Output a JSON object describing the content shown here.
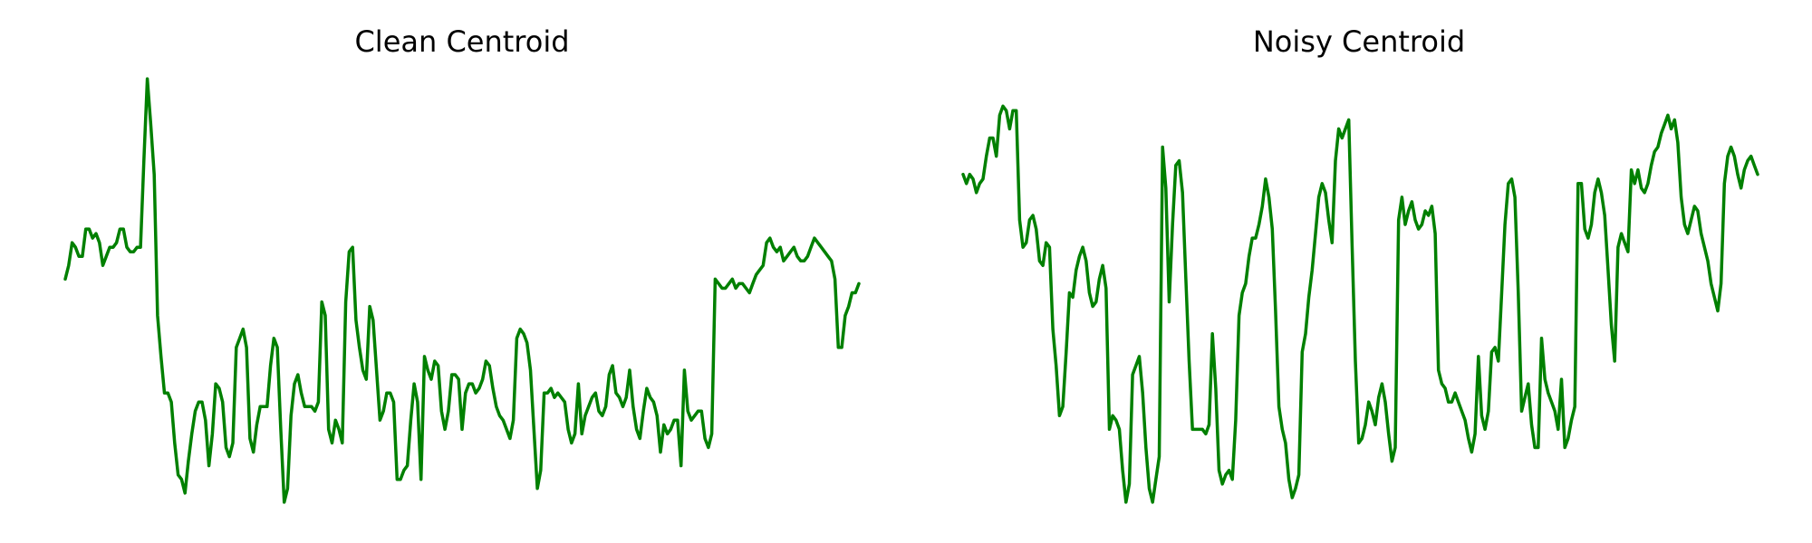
{
  "colors": {
    "line": "#008000",
    "background": "#ffffff"
  },
  "chart_data": [
    {
      "type": "line",
      "title": "Clean Centroid",
      "axes_visible": false,
      "ylim": [
        0,
        1
      ],
      "series": [
        {
          "color": "#008000",
          "values": [
            0.53,
            0.56,
            0.61,
            0.6,
            0.58,
            0.58,
            0.64,
            0.64,
            0.62,
            0.63,
            0.61,
            0.56,
            0.58,
            0.6,
            0.6,
            0.61,
            0.64,
            0.64,
            0.6,
            0.59,
            0.59,
            0.6,
            0.6,
            0.79,
            0.97,
            0.87,
            0.76,
            0.45,
            0.36,
            0.28,
            0.28,
            0.26,
            0.17,
            0.1,
            0.09,
            0.06,
            0.13,
            0.19,
            0.24,
            0.26,
            0.26,
            0.22,
            0.12,
            0.19,
            0.3,
            0.29,
            0.26,
            0.16,
            0.14,
            0.17,
            0.38,
            0.4,
            0.42,
            0.38,
            0.18,
            0.15,
            0.21,
            0.25,
            0.25,
            0.25,
            0.34,
            0.4,
            0.38,
            0.2,
            0.04,
            0.07,
            0.23,
            0.3,
            0.32,
            0.28,
            0.25,
            0.25,
            0.25,
            0.24,
            0.26,
            0.48,
            0.45,
            0.2,
            0.17,
            0.22,
            0.2,
            0.17,
            0.48,
            0.59,
            0.6,
            0.44,
            0.38,
            0.33,
            0.31,
            0.47,
            0.44,
            0.33,
            0.22,
            0.24,
            0.28,
            0.28,
            0.26,
            0.09,
            0.09,
            0.11,
            0.12,
            0.22,
            0.3,
            0.26,
            0.09,
            0.36,
            0.33,
            0.31,
            0.35,
            0.34,
            0.24,
            0.2,
            0.24,
            0.32,
            0.32,
            0.31,
            0.2,
            0.28,
            0.3,
            0.3,
            0.28,
            0.29,
            0.31,
            0.35,
            0.34,
            0.29,
            0.25,
            0.23,
            0.22,
            0.2,
            0.18,
            0.22,
            0.4,
            0.42,
            0.41,
            0.39,
            0.33,
            0.2,
            0.07,
            0.11,
            0.28,
            0.28,
            0.29,
            0.27,
            0.28,
            0.27,
            0.26,
            0.2,
            0.17,
            0.19,
            0.3,
            0.19,
            0.23,
            0.25,
            0.27,
            0.28,
            0.24,
            0.23,
            0.25,
            0.32,
            0.34,
            0.28,
            0.27,
            0.25,
            0.27,
            0.33,
            0.25,
            0.2,
            0.18,
            0.24,
            0.29,
            0.27,
            0.26,
            0.23,
            0.15,
            0.21,
            0.19,
            0.2,
            0.22,
            0.22,
            0.12,
            0.33,
            0.24,
            0.22,
            0.23,
            0.24,
            0.24,
            0.18,
            0.16,
            0.19,
            0.53,
            0.52,
            0.51,
            0.51,
            0.52,
            0.53,
            0.51,
            0.52,
            0.52,
            0.51,
            0.5,
            0.52,
            0.54,
            0.55,
            0.56,
            0.61,
            0.62,
            0.6,
            0.59,
            0.6,
            0.57,
            0.58,
            0.59,
            0.6,
            0.58,
            0.57,
            0.57,
            0.58,
            0.6,
            0.62,
            0.61,
            0.6,
            0.59,
            0.58,
            0.57,
            0.53,
            0.38,
            0.38,
            0.45,
            0.47,
            0.5,
            0.5,
            0.52
          ]
        }
      ]
    },
    {
      "type": "line",
      "title": "Noisy Centroid",
      "axes_visible": false,
      "ylim": [
        0,
        1
      ],
      "series": [
        {
          "color": "#008000",
          "values": [
            0.76,
            0.74,
            0.76,
            0.75,
            0.72,
            0.74,
            0.75,
            0.8,
            0.84,
            0.84,
            0.8,
            0.89,
            0.91,
            0.9,
            0.86,
            0.9,
            0.9,
            0.66,
            0.6,
            0.61,
            0.66,
            0.67,
            0.64,
            0.57,
            0.56,
            0.61,
            0.6,
            0.42,
            0.34,
            0.23,
            0.25,
            0.37,
            0.5,
            0.49,
            0.55,
            0.58,
            0.6,
            0.57,
            0.5,
            0.47,
            0.48,
            0.53,
            0.56,
            0.51,
            0.2,
            0.23,
            0.22,
            0.2,
            0.11,
            0.04,
            0.08,
            0.32,
            0.34,
            0.36,
            0.28,
            0.16,
            0.07,
            0.04,
            0.09,
            0.14,
            0.82,
            0.73,
            0.48,
            0.65,
            0.78,
            0.79,
            0.72,
            0.53,
            0.35,
            0.2,
            0.2,
            0.2,
            0.2,
            0.19,
            0.21,
            0.41,
            0.29,
            0.11,
            0.08,
            0.1,
            0.11,
            0.09,
            0.22,
            0.45,
            0.5,
            0.52,
            0.58,
            0.62,
            0.62,
            0.65,
            0.69,
            0.75,
            0.71,
            0.64,
            0.46,
            0.25,
            0.2,
            0.17,
            0.09,
            0.05,
            0.07,
            0.1,
            0.37,
            0.41,
            0.49,
            0.55,
            0.63,
            0.71,
            0.74,
            0.72,
            0.66,
            0.61,
            0.79,
            0.86,
            0.84,
            0.86,
            0.88,
            0.61,
            0.35,
            0.17,
            0.18,
            0.21,
            0.26,
            0.24,
            0.21,
            0.27,
            0.3,
            0.26,
            0.19,
            0.13,
            0.16,
            0.66,
            0.71,
            0.65,
            0.68,
            0.7,
            0.66,
            0.64,
            0.65,
            0.68,
            0.67,
            0.69,
            0.63,
            0.33,
            0.3,
            0.29,
            0.26,
            0.26,
            0.28,
            0.26,
            0.24,
            0.22,
            0.18,
            0.15,
            0.19,
            0.36,
            0.23,
            0.2,
            0.24,
            0.37,
            0.38,
            0.35,
            0.5,
            0.65,
            0.74,
            0.75,
            0.71,
            0.5,
            0.24,
            0.27,
            0.3,
            0.21,
            0.16,
            0.16,
            0.4,
            0.31,
            0.28,
            0.26,
            0.24,
            0.2,
            0.31,
            0.16,
            0.18,
            0.22,
            0.25,
            0.74,
            0.74,
            0.64,
            0.62,
            0.65,
            0.72,
            0.75,
            0.72,
            0.67,
            0.55,
            0.43,
            0.35,
            0.6,
            0.63,
            0.61,
            0.59,
            0.77,
            0.74,
            0.77,
            0.73,
            0.72,
            0.74,
            0.78,
            0.81,
            0.82,
            0.85,
            0.87,
            0.89,
            0.86,
            0.88,
            0.83,
            0.71,
            0.65,
            0.63,
            0.66,
            0.69,
            0.68,
            0.63,
            0.6,
            0.57,
            0.52,
            0.49,
            0.46,
            0.52,
            0.74,
            0.8,
            0.82,
            0.8,
            0.76,
            0.73,
            0.77,
            0.79,
            0.8,
            0.78,
            0.76
          ]
        }
      ]
    }
  ]
}
